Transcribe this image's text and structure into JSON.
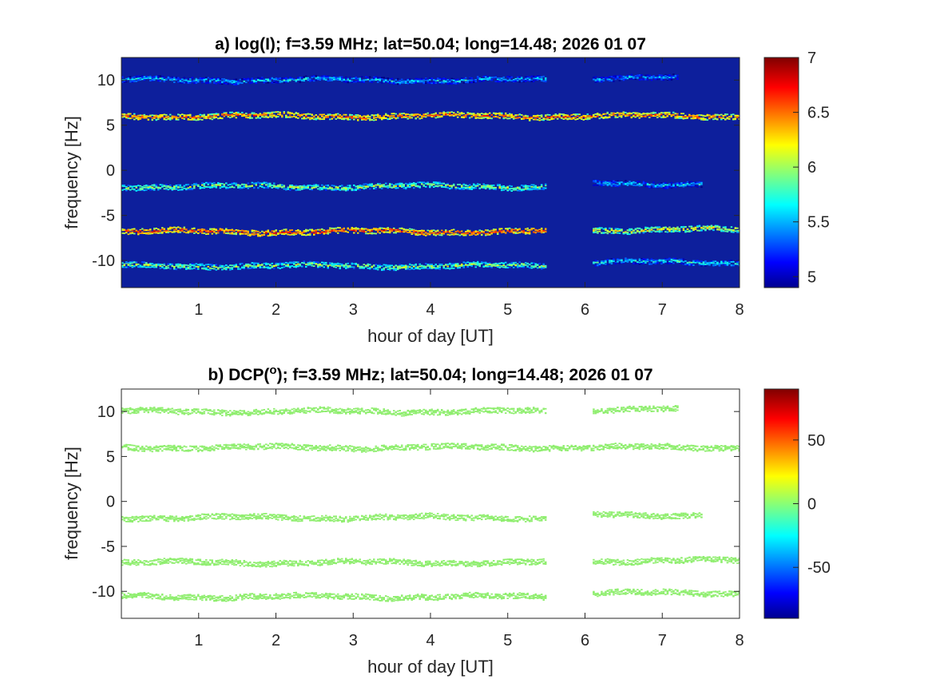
{
  "chart_data": [
    {
      "type": "heatmap",
      "title": "a) log(I); f=3.59 MHz;  lat=50.04; long=14.48; 2026 01 07",
      "xlabel": "hour of day [UT]",
      "ylabel": "frequency [Hz]",
      "xlim": [
        0,
        8
      ],
      "ylim": [
        -13,
        12.5
      ],
      "xticks": [
        "1",
        "2",
        "3",
        "4",
        "5",
        "6",
        "7",
        "8"
      ],
      "yticks": [
        "10",
        "5",
        "0",
        "-5",
        "-10"
      ],
      "colorbar": {
        "range": [
          4.9,
          7
        ],
        "ticks": [
          "7",
          "6.5",
          "6",
          "5.5",
          "5"
        ],
        "colormap": "jet"
      },
      "background": "#0d1f9c",
      "traces": [
        {
          "freq": 10,
          "x": [
            0,
            5.5
          ],
          "level": 5.9
        },
        {
          "freq": 10.2,
          "x": [
            6.1,
            7.2
          ],
          "level": 5.8
        },
        {
          "freq": 6,
          "x": [
            0,
            8
          ],
          "level": 6.8
        },
        {
          "freq": -1.8,
          "x": [
            0,
            5.5
          ],
          "level": 6.3
        },
        {
          "freq": -1.5,
          "x": [
            6.1,
            7.5
          ],
          "level": 5.9
        },
        {
          "freq": -6.8,
          "x": [
            0,
            5.5
          ],
          "level": 6.9
        },
        {
          "freq": -6.6,
          "x": [
            6.1,
            8
          ],
          "level": 6.5
        },
        {
          "freq": -10.6,
          "x": [
            0,
            5.5
          ],
          "level": 6.3
        },
        {
          "freq": -10.2,
          "x": [
            6.1,
            8
          ],
          "level": 6.0
        }
      ]
    },
    {
      "type": "heatmap",
      "title": "b) DCP(",
      "title_superscript": "o",
      "title_rest": "); f=3.59 MHz;  lat=50.04; long=14.48; 2026 01 07",
      "xlabel": "hour of day [UT]",
      "ylabel": "frequency [Hz]",
      "xlim": [
        0,
        8
      ],
      "ylim": [
        -13,
        12.5
      ],
      "xticks": [
        "1",
        "2",
        "3",
        "4",
        "5",
        "6",
        "7",
        "8"
      ],
      "yticks": [
        "10",
        "5",
        "0",
        "-5",
        "-10"
      ],
      "colorbar": {
        "range": [
          -90,
          90
        ],
        "ticks": [
          "50",
          "0",
          "-50"
        ],
        "colormap": "jet"
      },
      "background": "#ffffff",
      "trace_color": "#90ee70",
      "traces": [
        {
          "freq": 10,
          "x": [
            0,
            5.5
          ]
        },
        {
          "freq": 10.2,
          "x": [
            6.1,
            7.2
          ]
        },
        {
          "freq": 6,
          "x": [
            0,
            8
          ]
        },
        {
          "freq": -1.8,
          "x": [
            0,
            5.5
          ]
        },
        {
          "freq": -1.5,
          "x": [
            6.1,
            7.5
          ]
        },
        {
          "freq": -6.8,
          "x": [
            0,
            5.5
          ]
        },
        {
          "freq": -6.6,
          "x": [
            6.1,
            8
          ]
        },
        {
          "freq": -10.6,
          "x": [
            0,
            5.5
          ]
        },
        {
          "freq": -10.2,
          "x": [
            6.1,
            8
          ]
        }
      ]
    }
  ]
}
